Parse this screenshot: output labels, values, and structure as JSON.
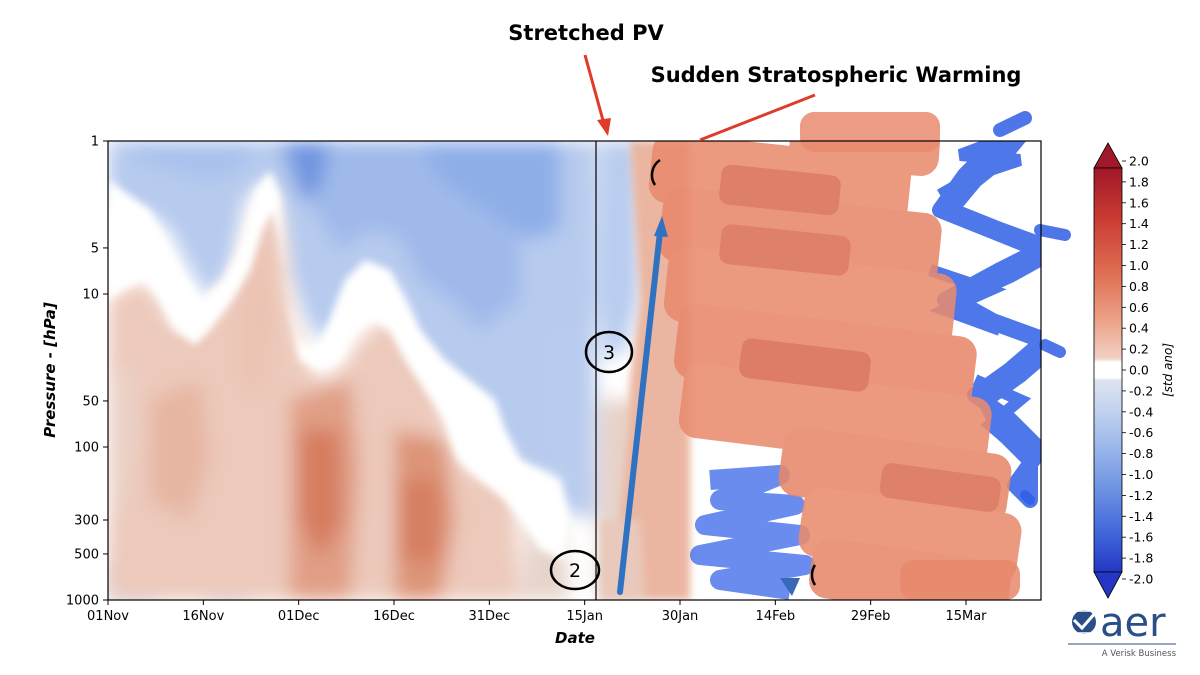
{
  "annotations": {
    "stretched_pv": "Stretched PV",
    "ssw": "Sudden Stratospheric Warming",
    "marker_2": "2",
    "marker_3": "3"
  },
  "logo": {
    "name": "aer",
    "tagline": "A Verisk Business"
  },
  "chart_data": {
    "type": "heatmap",
    "xlabel": "Date",
    "ylabel": "Pressure - [hPa]",
    "x_ticks": [
      "01Nov",
      "16Nov",
      "01Dec",
      "16Dec",
      "31Dec",
      "15Jan",
      "30Jan",
      "14Feb",
      "29Feb",
      "15Mar"
    ],
    "y_scale": "log",
    "y_inverted": true,
    "y_ticks": [
      1,
      5,
      10,
      50,
      100,
      300,
      500,
      1000
    ],
    "ylim": [
      1000,
      1
    ],
    "colorbar": {
      "label": "[std ano]",
      "ticks": [
        "2.0",
        "1.8",
        "1.6",
        "1.4",
        "1.2",
        "1.0",
        "0.8",
        "0.6",
        "0.4",
        "0.2",
        "0.0",
        "-0.2",
        "-0.4",
        "-0.6",
        "-0.8",
        "-1.0",
        "-1.2",
        "-1.4",
        "-1.6",
        "-1.8",
        "-2.0"
      ],
      "range": [
        -2.0,
        2.0
      ]
    },
    "divider_date": "17Jan",
    "colors": {
      "warm_light": "#f2d8cc",
      "warm": "#e8a088",
      "warm_strong": "#d9694a",
      "cool_light": "#dbe6f5",
      "cool": "#a9c2ea",
      "cool_strong": "#5d88dc",
      "drawn_warm": "#e8866a",
      "drawn_cool": "#2a5fe6",
      "arrow_red": "#e03a2a",
      "arrow_blue": "#2f72c2"
    }
  }
}
